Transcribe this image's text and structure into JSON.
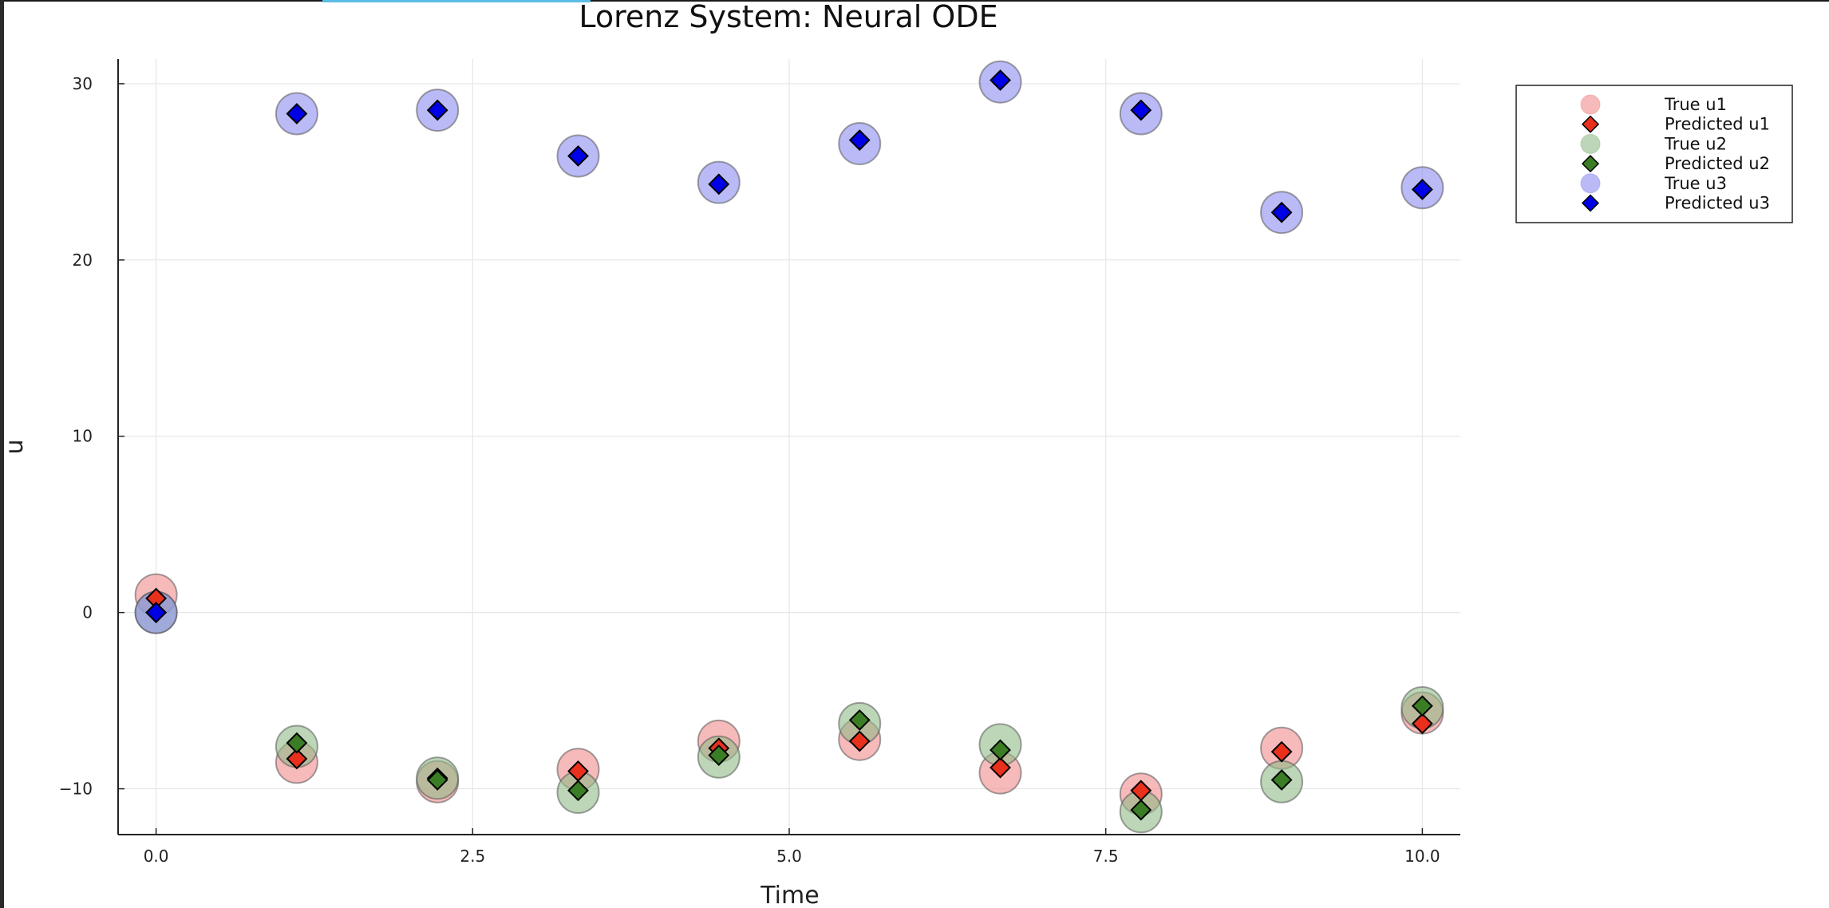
{
  "chart_data": {
    "type": "scatter",
    "title": "Lorenz System: Neural ODE",
    "xlabel": "Time",
    "ylabel": "u",
    "xlim": [
      -0.3,
      10.3
    ],
    "ylim": [
      -12.6,
      31.4
    ],
    "xticks": [
      0,
      2.5,
      5,
      7.5,
      10
    ],
    "xtick_labels": [
      "0.0",
      "2.5",
      "5.0",
      "7.5",
      "10.0"
    ],
    "yticks": [
      -10,
      0,
      10,
      20,
      30
    ],
    "ytick_labels": [
      "−10",
      "0",
      "10",
      "20",
      "30"
    ],
    "grid": true,
    "legend_position": "top-right",
    "x": [
      0,
      1.111,
      2.222,
      3.333,
      4.444,
      5.556,
      6.667,
      7.778,
      8.889,
      10
    ],
    "series": [
      {
        "name": "True u1",
        "marker": "circle",
        "color": "#f28c8c",
        "values": [
          1.0,
          -8.5,
          -9.6,
          -8.9,
          -7.3,
          -7.2,
          -9.1,
          -10.3,
          -7.7,
          -5.7
        ]
      },
      {
        "name": "Predicted u1",
        "marker": "diamond",
        "color": "#e8301c",
        "values": [
          0.8,
          -8.3,
          -9.4,
          -9.0,
          -7.7,
          -7.3,
          -8.8,
          -10.1,
          -7.9,
          -6.3
        ]
      },
      {
        "name": "True u2",
        "marker": "circle",
        "color": "#8fba87",
        "values": [
          0.0,
          -7.6,
          -9.4,
          -10.2,
          -8.2,
          -6.3,
          -7.5,
          -11.3,
          -9.6,
          -5.4
        ]
      },
      {
        "name": "Predicted u2",
        "marker": "diamond",
        "color": "#3a7d25",
        "values": [
          0.0,
          -7.4,
          -9.5,
          -10.1,
          -8.1,
          -6.1,
          -7.8,
          -11.2,
          -9.5,
          -5.3
        ]
      },
      {
        "name": "True u3",
        "marker": "circle",
        "color": "#8c8cf2",
        "values": [
          0.0,
          28.3,
          28.5,
          25.9,
          24.4,
          26.6,
          30.1,
          28.3,
          22.7,
          24.1
        ]
      },
      {
        "name": "Predicted u3",
        "marker": "diamond",
        "color": "#0000e6",
        "values": [
          0.0,
          28.3,
          28.5,
          25.9,
          24.3,
          26.8,
          30.2,
          28.5,
          22.7,
          24.0
        ]
      }
    ]
  }
}
